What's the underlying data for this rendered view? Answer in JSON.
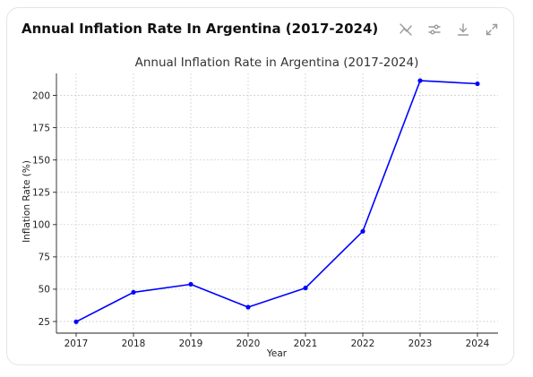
{
  "card": {
    "title": "Annual Inflation Rate In Argentina (2017-2024)",
    "toolbar": [
      {
        "name": "hide-chart-button",
        "icon": "chart-off-icon"
      },
      {
        "name": "settings-button",
        "icon": "sliders-icon"
      },
      {
        "name": "download-button",
        "icon": "download-icon"
      },
      {
        "name": "expand-button",
        "icon": "expand-icon"
      }
    ]
  },
  "chart_data": {
    "type": "line",
    "title": "Annual Inflation Rate in Argentina (2017-2024)",
    "xlabel": "Year",
    "ylabel": "Inflation Rate (%)",
    "x": [
      "2017",
      "2018",
      "2019",
      "2020",
      "2021",
      "2022",
      "2023",
      "2024"
    ],
    "series": [
      {
        "values": [
          24.8,
          47.6,
          53.8,
          36.1,
          50.9,
          94.8,
          211.4,
          209.0
        ],
        "color": "#0000ff"
      }
    ],
    "yticks": [
      25,
      50,
      75,
      100,
      125,
      150,
      175,
      200
    ],
    "ylim": [
      16,
      217
    ],
    "grid": true,
    "marker": "circle"
  }
}
